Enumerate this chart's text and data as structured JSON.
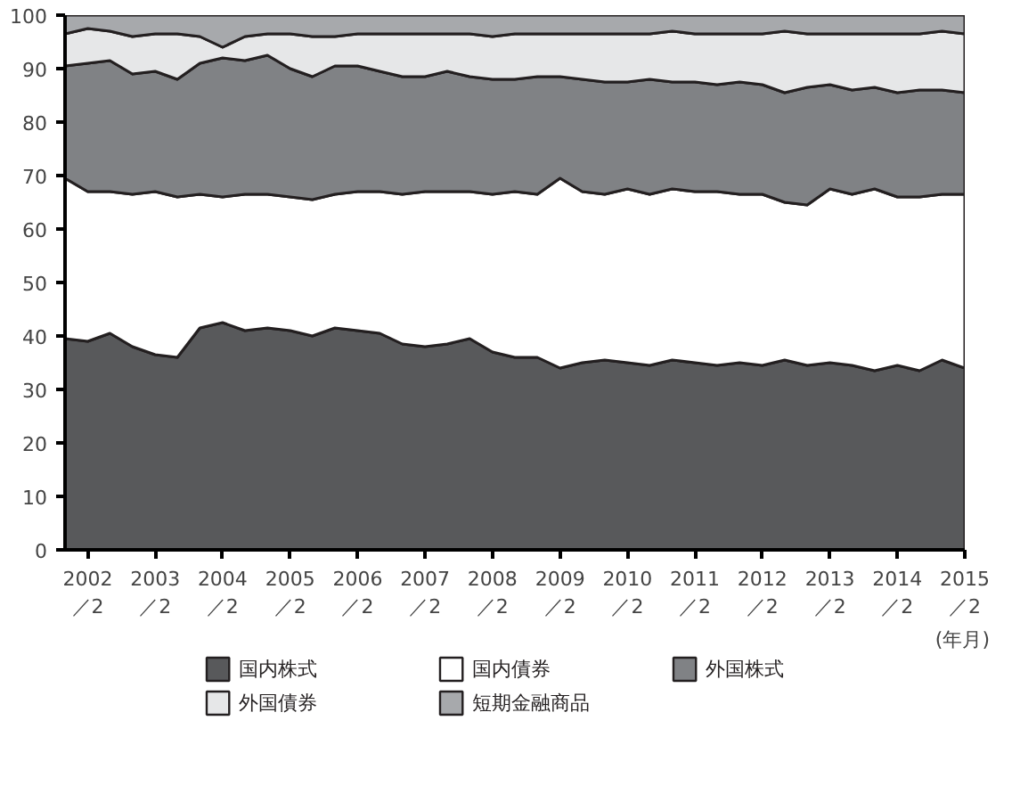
{
  "chart_data": {
    "type": "area",
    "stacked": true,
    "x": [
      "2001-10",
      "2002-02",
      "2002-06",
      "2002-10",
      "2003-02",
      "2003-06",
      "2003-10",
      "2004-02",
      "2004-06",
      "2004-10",
      "2005-02",
      "2005-06",
      "2005-10",
      "2006-02",
      "2006-06",
      "2006-10",
      "2007-02",
      "2007-06",
      "2007-10",
      "2008-02",
      "2008-06",
      "2008-10",
      "2009-02",
      "2009-06",
      "2009-10",
      "2010-02",
      "2010-06",
      "2010-10",
      "2011-02",
      "2011-06",
      "2011-10",
      "2012-02",
      "2012-06",
      "2012-10",
      "2013-02",
      "2013-06",
      "2013-10",
      "2014-02",
      "2014-06",
      "2014-10",
      "2015-02"
    ],
    "series": [
      {
        "name": "国内株式",
        "color": "#58595b",
        "values": [
          39.5,
          39,
          40.5,
          38,
          36.5,
          36,
          41.5,
          42.5,
          41,
          41.5,
          41,
          40,
          41.5,
          41,
          40.5,
          38.5,
          38,
          38.5,
          39.5,
          37,
          36,
          36,
          34,
          35,
          35.5,
          35,
          34.5,
          35.5,
          35,
          34.5,
          35,
          34.5,
          35.5,
          34.5,
          35,
          34.5,
          33.5,
          34.5,
          33.5,
          35.5,
          34
        ]
      },
      {
        "name": "国内債券",
        "color": "#ffffff",
        "values": [
          30,
          28,
          26.5,
          28.5,
          30.5,
          30,
          25,
          23.5,
          25.5,
          25,
          25,
          25.5,
          25,
          26,
          26.5,
          28,
          29,
          28.5,
          27.5,
          29.5,
          31,
          30.5,
          35.5,
          32,
          31,
          32.5,
          32,
          32,
          32,
          32.5,
          31.5,
          32,
          29.5,
          30,
          32.5,
          32,
          34,
          31.5,
          32.5,
          31,
          32.5
        ]
      },
      {
        "name": "外国株式",
        "color": "#808285",
        "values": [
          21,
          24,
          24.5,
          22.5,
          22.5,
          22,
          24.5,
          26,
          25,
          26,
          24,
          23,
          24,
          23.5,
          22.5,
          22,
          21.5,
          22.5,
          21.5,
          21.5,
          21,
          22,
          19,
          21,
          21,
          20,
          21.5,
          20,
          20.5,
          20,
          21,
          20.5,
          20.5,
          22,
          19.5,
          19.5,
          19,
          19.5,
          20,
          19.5,
          19
        ]
      },
      {
        "name": "外国債券",
        "color": "#e6e7e8",
        "values": [
          6,
          6.5,
          5.5,
          7,
          7,
          8.5,
          5,
          2,
          4.5,
          4,
          6.5,
          7.5,
          5.5,
          6,
          7,
          8,
          8,
          7,
          8,
          8,
          8.5,
          8,
          8,
          8.5,
          9,
          9,
          8.5,
          9.5,
          9,
          9.5,
          9,
          9.5,
          11.5,
          10,
          9.5,
          10.5,
          10,
          11,
          10.5,
          11,
          11
        ]
      },
      {
        "name": "短期金融商品",
        "color": "#a7a9ac",
        "values": [
          3.5,
          2.5,
          3,
          4,
          3.5,
          3.5,
          4,
          6,
          4,
          3.5,
          3.5,
          4,
          4,
          3.5,
          3.5,
          3.5,
          3.5,
          3.5,
          3.5,
          4,
          3.5,
          3.5,
          3.5,
          3.5,
          3.5,
          3.5,
          3.5,
          3,
          3.5,
          3.5,
          3.5,
          3.5,
          3,
          3.5,
          3.5,
          3.5,
          3.5,
          3.5,
          3.5,
          3,
          3.5
        ]
      }
    ],
    "xlim": [
      "2001-10",
      "2015-02"
    ],
    "xticks": [
      {
        "value": "2002-02",
        "label": "2002\n／2"
      },
      {
        "value": "2003-02",
        "label": "2003\n／2"
      },
      {
        "value": "2004-02",
        "label": "2004\n／2"
      },
      {
        "value": "2005-02",
        "label": "2005\n／2"
      },
      {
        "value": "2006-02",
        "label": "2006\n／2"
      },
      {
        "value": "2007-02",
        "label": "2007\n／2"
      },
      {
        "value": "2008-02",
        "label": "2008\n／2"
      },
      {
        "value": "2009-02",
        "label": "2009\n／2"
      },
      {
        "value": "2010-02",
        "label": "2010\n／2"
      },
      {
        "value": "2011-02",
        "label": "2011\n／2"
      },
      {
        "value": "2012-02",
        "label": "2012\n／2"
      },
      {
        "value": "2013-02",
        "label": "2013\n／2"
      },
      {
        "value": "2014-02",
        "label": "2014\n／2"
      },
      {
        "value": "2015-02",
        "label": "2015\n／2"
      }
    ],
    "ylim": [
      0,
      100
    ],
    "yticks": [
      0,
      10,
      20,
      30,
      40,
      50,
      60,
      70,
      80,
      90,
      100
    ],
    "grid": false,
    "legend": "bottom",
    "annotations": [
      "(年月)"
    ]
  }
}
